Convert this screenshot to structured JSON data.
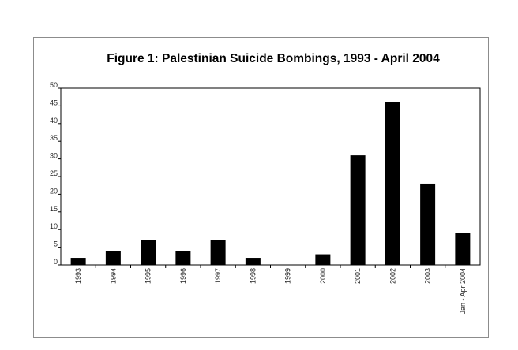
{
  "chart_data": {
    "type": "bar",
    "title": "Figure 1: Palestinian Suicide Bombings, 1993 - April 2004",
    "xlabel": "",
    "ylabel": "",
    "categories": [
      "1993",
      "1994",
      "1995",
      "1996",
      "1997",
      "1998",
      "1999",
      "2000",
      "2001",
      "2002",
      "2003",
      "Jan - Apr 2004"
    ],
    "values": [
      2,
      4,
      7,
      4,
      7,
      2,
      0,
      3,
      31,
      46,
      23,
      9
    ],
    "ylim": [
      0,
      50
    ],
    "yticks": [
      0,
      5,
      10,
      15,
      20,
      25,
      30,
      35,
      40,
      45,
      50
    ],
    "bar_color": "#000000",
    "grid": false,
    "legend": "none"
  }
}
